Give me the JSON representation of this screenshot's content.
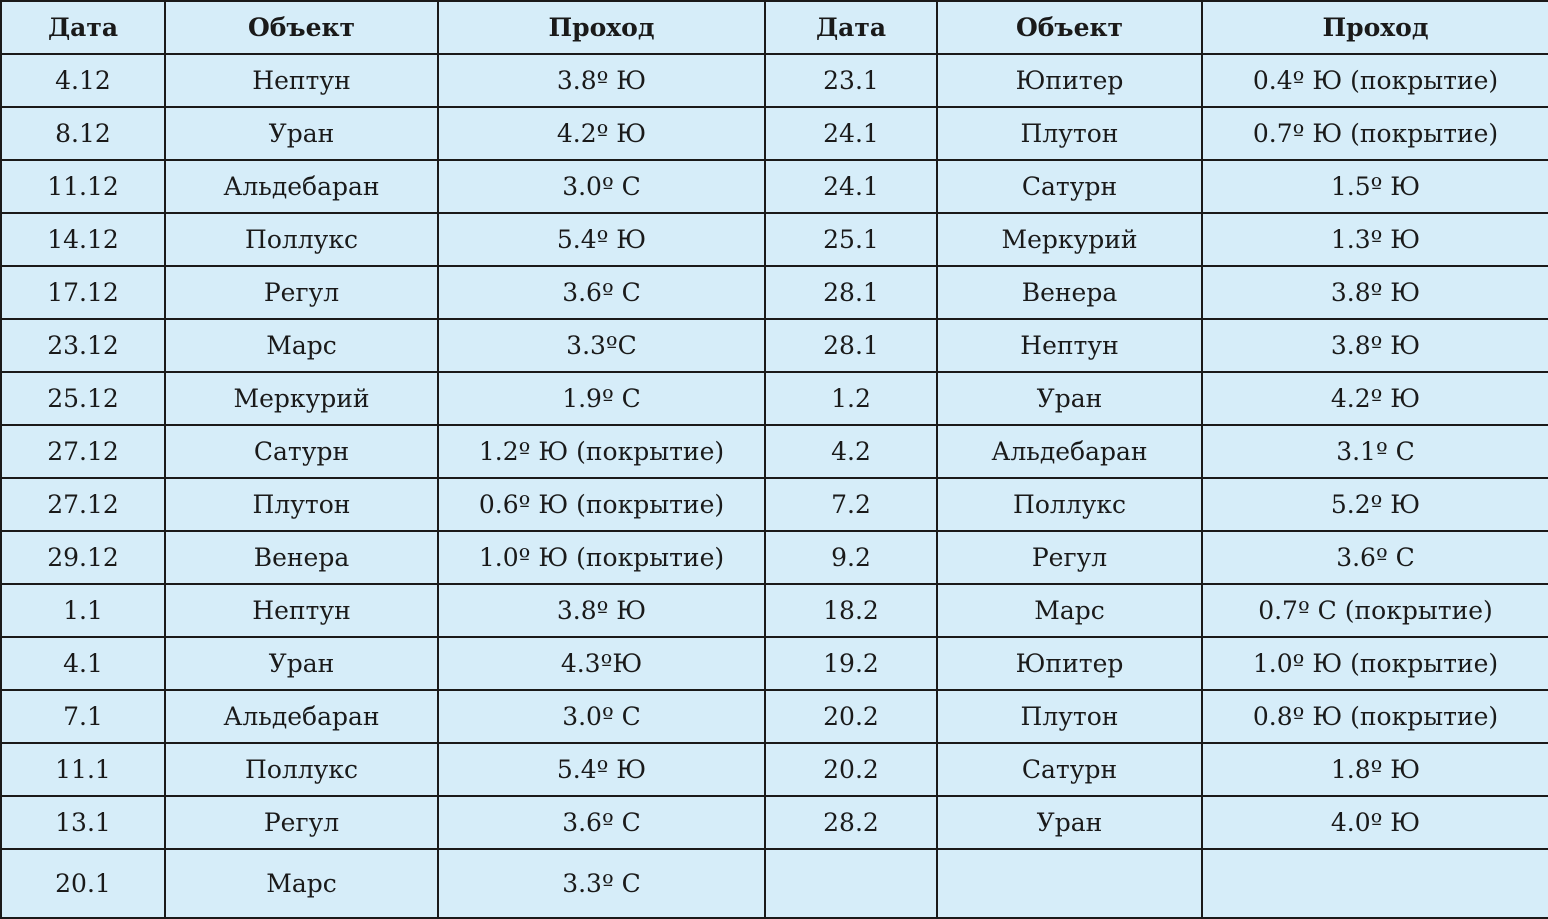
{
  "headers": [
    "Дата",
    "Объект",
    "Проход",
    "Дата",
    "Объект",
    "Проход"
  ],
  "rows": [
    [
      "4.12",
      "Нептун",
      "3.8º Ю",
      "23.1",
      "Юпитер",
      "0.4º Ю (покрытие)"
    ],
    [
      "8.12",
      "Уран",
      "4.2º Ю",
      "24.1",
      "Плутон",
      "0.7º Ю (покрытие)"
    ],
    [
      "11.12",
      "Альдебаран",
      "3.0º С",
      "24.1",
      "Сатурн",
      "1.5º Ю"
    ],
    [
      "14.12",
      "Поллукс",
      "5.4º Ю",
      "25.1",
      "Меркурий",
      "1.3º Ю"
    ],
    [
      "17.12",
      "Регул",
      "3.6º С",
      "28.1",
      "Венера",
      "3.8º Ю"
    ],
    [
      "23.12",
      "Марс",
      "3.3ºС",
      "28.1",
      "Нептун",
      "3.8º Ю"
    ],
    [
      "25.12",
      "Меркурий",
      "1.9º С",
      "1.2",
      "Уран",
      "4.2º Ю"
    ],
    [
      "27.12",
      "Сатурн",
      "1.2º Ю (покрытие)",
      "4.2",
      "Альдебаран",
      "3.1º С"
    ],
    [
      "27.12",
      "Плутон",
      "0.6º Ю (покрытие)",
      "7.2",
      "Поллукс",
      "5.2º Ю"
    ],
    [
      "29.12",
      "Венера",
      "1.0º Ю (покрытие)",
      "9.2",
      "Регул",
      "3.6º С"
    ],
    [
      "1.1",
      "Нептун",
      "3.8º Ю",
      "18.2",
      "Марс",
      "0.7º С (покрытие)"
    ],
    [
      "4.1",
      "Уран",
      "4.3ºЮ",
      "19.2",
      "Юпитер",
      "1.0º Ю (покрытие)"
    ],
    [
      "7.1",
      "Альдебаран",
      "3.0º С",
      "20.2",
      "Плутон",
      "0.8º Ю (покрытие)"
    ],
    [
      "11.1",
      "Поллукс",
      "5.4º Ю",
      "20.2",
      "Сатурн",
      "1.8º Ю"
    ],
    [
      "13.1",
      "Регул",
      "3.6º С",
      "28.2",
      "Уран",
      "4.0º Ю"
    ],
    [
      "20.1",
      "Марс",
      "3.3º С",
      "",
      "",
      ""
    ]
  ]
}
